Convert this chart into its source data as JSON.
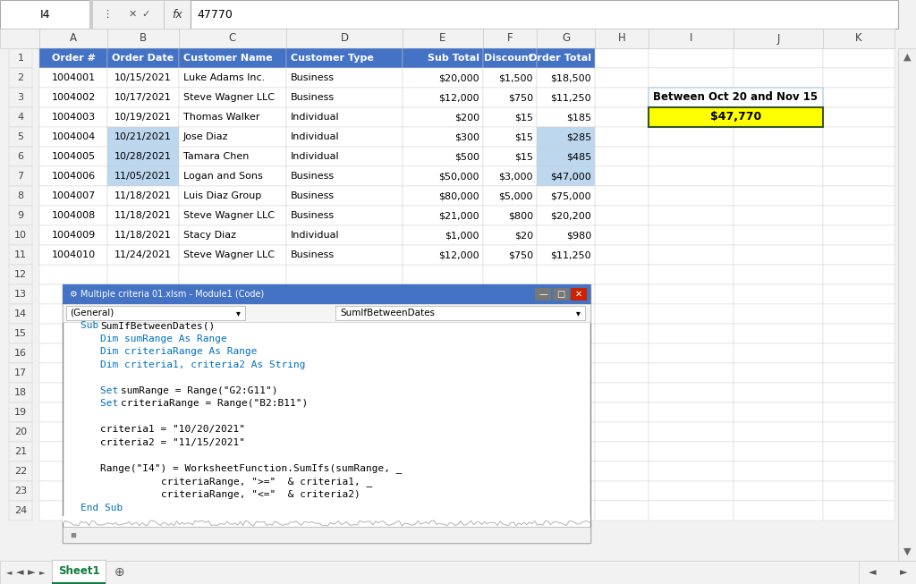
{
  "formula_bar_cell": "I4",
  "formula_bar_value": "47770",
  "col_letters": [
    "A",
    "B",
    "C",
    "D",
    "E",
    "F",
    "G",
    "H",
    "I",
    "J",
    "K"
  ],
  "table_headers": [
    "Order #",
    "Order Date",
    "Customer Name",
    "Customer Type",
    "Sub Total",
    "Discount",
    "Order Total"
  ],
  "table_header_bg": "#4472C4",
  "table_header_fg": "#FFFFFF",
  "data_rows": [
    [
      "1004001",
      "10/15/2021",
      "Luke Adams Inc.",
      "Business",
      "$20,000",
      "$1,500",
      "$18,500"
    ],
    [
      "1004002",
      "10/17/2021",
      "Steve Wagner LLC",
      "Business",
      "$12,000",
      "$750",
      "$11,250"
    ],
    [
      "1004003",
      "10/19/2021",
      "Thomas Walker",
      "Individual",
      "$200",
      "$15",
      "$185"
    ],
    [
      "1004004",
      "10/21/2021",
      "Jose Diaz",
      "Individual",
      "$300",
      "$15",
      "$285"
    ],
    [
      "1004005",
      "10/28/2021",
      "Tamara Chen",
      "Individual",
      "$500",
      "$15",
      "$485"
    ],
    [
      "1004006",
      "11/05/2021",
      "Logan and Sons",
      "Business",
      "$50,000",
      "$3,000",
      "$47,000"
    ],
    [
      "1004007",
      "11/18/2021",
      "Luis Diaz Group",
      "Business",
      "$80,000",
      "$5,000",
      "$75,000"
    ],
    [
      "1004008",
      "11/18/2021",
      "Steve Wagner LLC",
      "Business",
      "$21,000",
      "$800",
      "$20,200"
    ],
    [
      "1004009",
      "11/18/2021",
      "Stacy Diaz",
      "Individual",
      "$1,000",
      "$20",
      "$980"
    ],
    [
      "1004010",
      "11/24/2021",
      "Steve Wagner LLC",
      "Business",
      "$12,000",
      "$750",
      "$11,250"
    ]
  ],
  "highlighted_rows_spreadsheet": [
    5,
    6,
    7
  ],
  "highlight_color": "#BDD7EE",
  "result_label": "Between Oct 20 and Nov 15",
  "result_value": "$47,770",
  "result_bg": "#FFFF00",
  "result_border": "#375623",
  "sheet_tab": "Sheet1",
  "vba_code_lines": [
    "Sub SumIfBetweenDates()",
    "    Dim sumRange As Range",
    "    Dim criteriaRange As Range",
    "    Dim criteria1, criteria2 As String",
    "",
    "    Set sumRange = Range(\"G2:G11\")",
    "    Set criteriaRange = Range(\"B2:B11\")",
    "",
    "    criteria1 = \"10/20/2021\"",
    "    criteria2 = \"11/15/2021\"",
    "",
    "    Range(\"I4\") = WorksheetFunction.SumIfs(sumRange, _",
    "                criteriaRange, \">=\"  & criteria1, _",
    "                criteriaRange, \"<=\"  & criteria2)",
    "End Sub"
  ],
  "vba_title_text": "Multiple criteria 01.xlsm - Module1 (Code)",
  "vba_toolbar_left": "(General)",
  "vba_toolbar_right": "SumIfBetweenDates",
  "keyword_color": "#0070C0",
  "normal_color": "#000000",
  "bg_color": "#F2F2F2",
  "grid_color": "#D0D0D0",
  "header_row_color": "#E8E8E8"
}
